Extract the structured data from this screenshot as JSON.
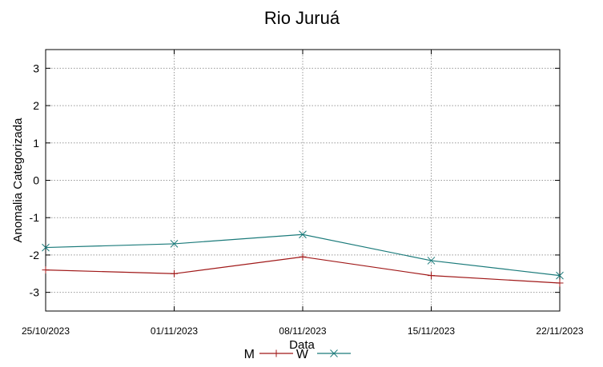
{
  "chart_data": {
    "type": "line",
    "title": "Rio Juruá",
    "xlabel": "Data",
    "ylabel": "Anomalia Categorizada",
    "categories": [
      "25/10/2023",
      "01/11/2023",
      "08/11/2023",
      "15/11/2023",
      "22/11/2023"
    ],
    "yticks": [
      "3",
      "2",
      "1",
      "0",
      "-1",
      "-2",
      "-3"
    ],
    "ylim": [
      -3.5,
      3.5
    ],
    "grid": true,
    "legend_position": "bottom",
    "series": [
      {
        "name": "M",
        "color": "#a01818",
        "marker": "plus",
        "values": [
          -2.4,
          -2.5,
          -2.05,
          -2.55,
          -2.75
        ]
      },
      {
        "name": "W",
        "color": "#1a7a7a",
        "marker": "cross",
        "values": [
          -1.8,
          -1.7,
          -1.45,
          -2.15,
          -2.55
        ]
      }
    ]
  }
}
